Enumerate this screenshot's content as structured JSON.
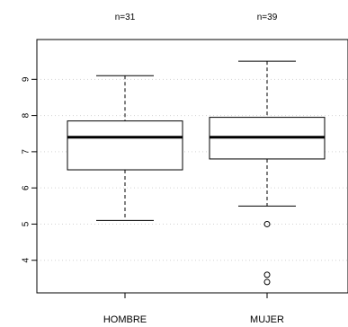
{
  "chart_data": {
    "type": "boxplot",
    "categories": [
      "HOMBRE",
      "MUJER"
    ],
    "counts": [
      "n=31",
      "n=39"
    ],
    "boxes": [
      {
        "category": "HOMBRE",
        "whisker_low": 5.1,
        "q1": 6.5,
        "median": 7.4,
        "q3": 7.85,
        "whisker_high": 9.1,
        "outliers": []
      },
      {
        "category": "MUJER",
        "whisker_low": 5.5,
        "q1": 6.8,
        "median": 7.4,
        "q3": 7.95,
        "whisker_high": 9.5,
        "outliers": [
          5.0,
          3.6,
          3.4
        ]
      }
    ],
    "yticks": [
      4,
      5,
      6,
      7,
      8,
      9
    ],
    "ylim": [
      3.1,
      10.1
    ],
    "grid": true,
    "legend": "none",
    "colors": {
      "box_fill": "#ffffff",
      "stroke": "#000000",
      "grid": "#d3d3d3"
    }
  }
}
